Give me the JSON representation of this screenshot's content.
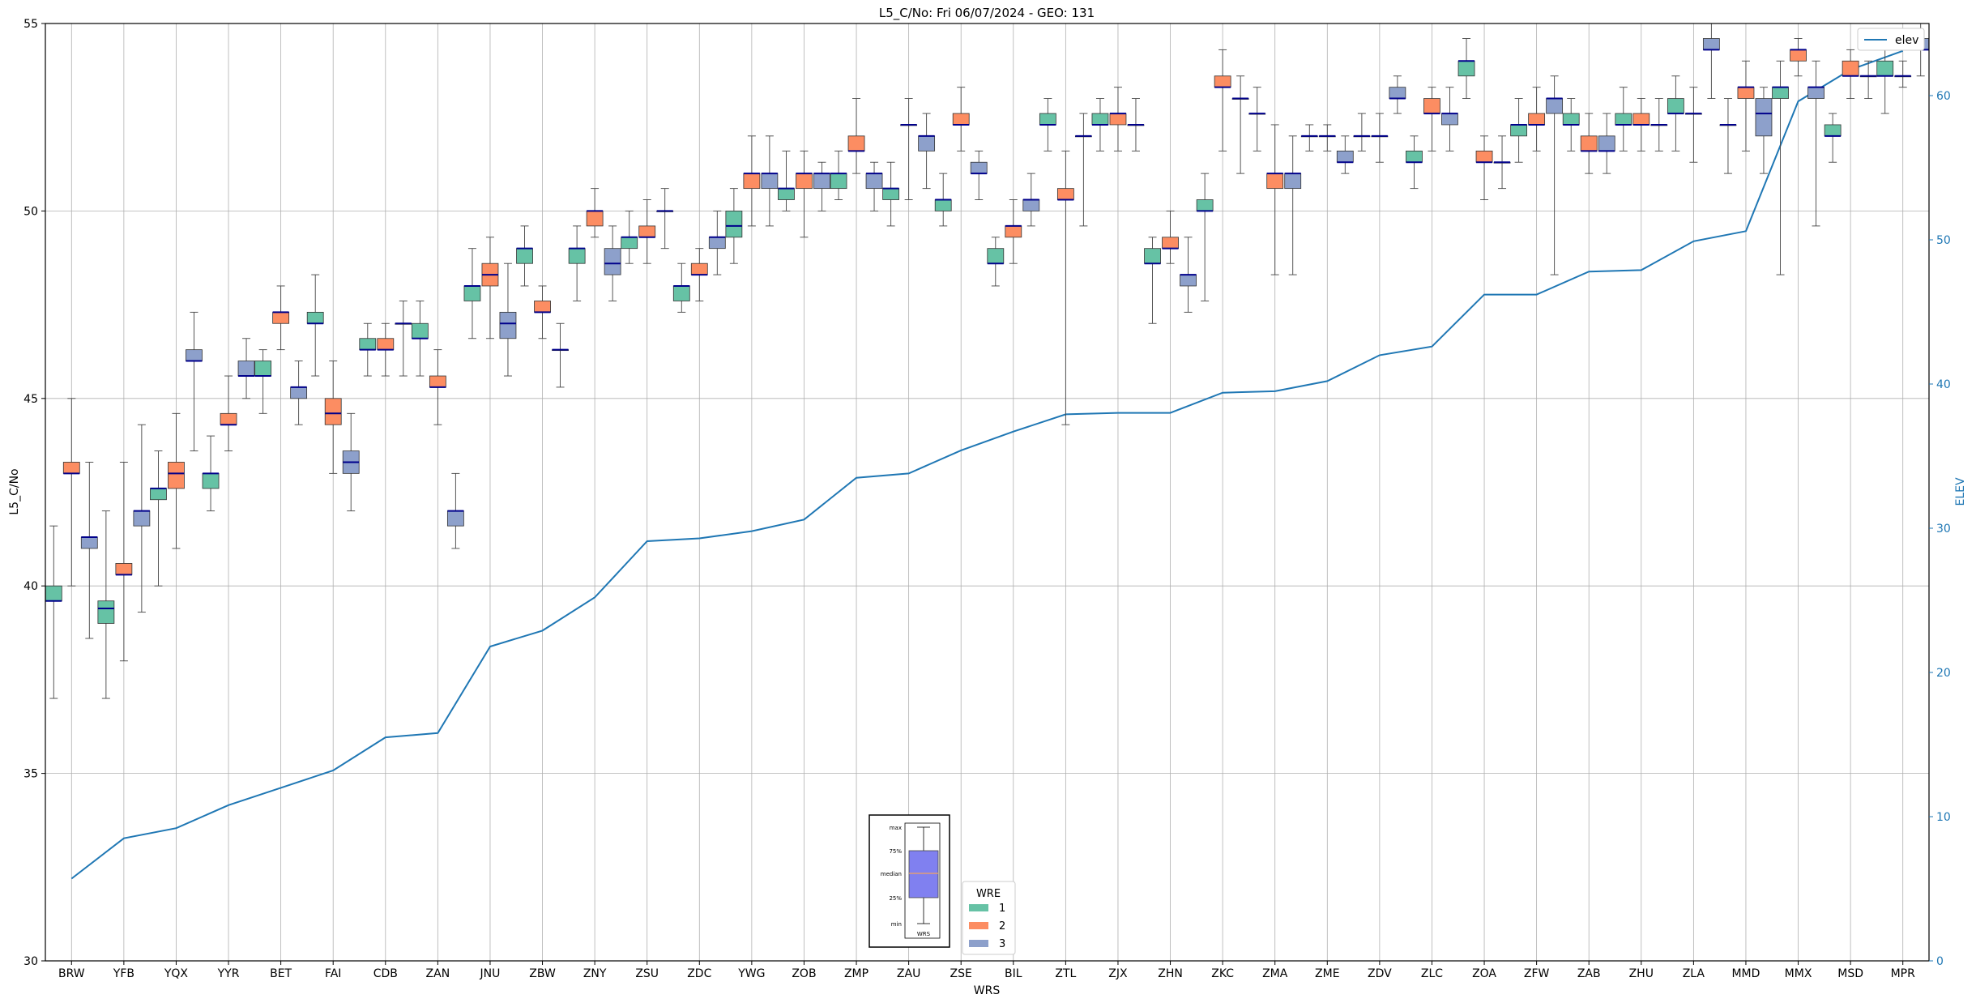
{
  "chart_data": {
    "type": "box",
    "title": "L5_C/No: Fri 06/07/2024 - GEO: 131",
    "xlabel": "WRS",
    "ylabel": "L5_C/No",
    "y2label": "ELEV",
    "ylim": [
      30,
      55
    ],
    "y2lim": [
      0,
      65
    ],
    "yticks": [
      30,
      35,
      40,
      45,
      50,
      55
    ],
    "y2ticks": [
      0,
      10,
      20,
      30,
      40,
      50,
      60
    ],
    "grid": true,
    "categories": [
      "BRW",
      "YFB",
      "YQX",
      "YYR",
      "BET",
      "FAI",
      "CDB",
      "ZAN",
      "JNU",
      "ZBW",
      "ZNY",
      "ZSU",
      "ZDC",
      "YWG",
      "ZOB",
      "ZMP",
      "ZAU",
      "ZSE",
      "BIL",
      "ZTL",
      "ZJX",
      "ZHN",
      "ZKC",
      "ZMA",
      "ZME",
      "ZDV",
      "ZLC",
      "ZOA",
      "ZFW",
      "ZAB",
      "ZHU",
      "ZLA",
      "MMD",
      "MMX",
      "MSD",
      "MPR"
    ],
    "series": [
      {
        "name": "1",
        "color": "#66c2a5",
        "boxes": [
          [
            37.0,
            39.6,
            39.6,
            40.0,
            41.6
          ],
          [
            37.0,
            39.0,
            39.4,
            39.6,
            42.0
          ],
          [
            40.0,
            42.3,
            42.6,
            42.6,
            43.6
          ],
          [
            42.0,
            42.6,
            43.0,
            43.0,
            44.0
          ],
          [
            44.6,
            45.6,
            45.6,
            46.0,
            46.3
          ],
          [
            45.6,
            47.0,
            47.0,
            47.3,
            48.3
          ],
          [
            45.6,
            46.3,
            46.3,
            46.6,
            47.0
          ],
          [
            45.6,
            46.6,
            46.6,
            47.0,
            47.6
          ],
          [
            46.6,
            47.6,
            48.0,
            48.0,
            49.0
          ],
          [
            48.0,
            48.6,
            49.0,
            49.0,
            49.6
          ],
          [
            47.6,
            48.6,
            49.0,
            49.0,
            49.6
          ],
          [
            48.6,
            49.0,
            49.3,
            49.3,
            50.0
          ],
          [
            47.3,
            47.6,
            48.0,
            48.0,
            48.6
          ],
          [
            48.6,
            49.3,
            49.6,
            50.0,
            50.6
          ],
          [
            50.0,
            50.3,
            50.6,
            50.6,
            51.6
          ],
          [
            50.3,
            50.6,
            51.0,
            51.0,
            51.6
          ],
          [
            49.6,
            50.3,
            50.6,
            50.6,
            51.3
          ],
          [
            49.6,
            50.0,
            50.3,
            50.3,
            51.0
          ],
          [
            48.0,
            48.6,
            48.6,
            49.0,
            49.3
          ],
          [
            51.6,
            52.3,
            52.3,
            52.6,
            53.0
          ],
          [
            51.6,
            52.3,
            52.3,
            52.6,
            53.0
          ],
          [
            47.0,
            48.6,
            48.6,
            49.0,
            49.3
          ],
          [
            47.6,
            50.0,
            50.0,
            50.3,
            51.0
          ],
          [
            51.6,
            52.6,
            52.6,
            52.6,
            53.3
          ],
          [
            51.6,
            52.0,
            52.0,
            52.0,
            52.3
          ],
          [
            51.6,
            52.0,
            52.0,
            52.0,
            52.6
          ],
          [
            50.6,
            51.3,
            51.3,
            51.6,
            52.0
          ],
          [
            53.0,
            53.6,
            54.0,
            54.0,
            54.6
          ],
          [
            51.3,
            52.0,
            52.3,
            52.3,
            53.0
          ],
          [
            51.6,
            52.3,
            52.3,
            52.6,
            53.0
          ],
          [
            51.6,
            52.3,
            52.3,
            52.6,
            53.3
          ],
          [
            51.6,
            52.6,
            52.6,
            53.0,
            53.6
          ],
          [
            51.0,
            52.3,
            52.3,
            52.3,
            53.0
          ],
          [
            48.3,
            53.0,
            53.3,
            53.3,
            54.0
          ],
          [
            51.3,
            52.0,
            52.0,
            52.3,
            52.6
          ],
          [
            52.6,
            53.6,
            53.6,
            54.0,
            54.3
          ]
        ]
      },
      {
        "name": "2",
        "color": "#fc8d62",
        "boxes": [
          [
            40.0,
            43.0,
            43.0,
            43.3,
            45.0
          ],
          [
            38.0,
            40.3,
            40.3,
            40.6,
            43.3
          ],
          [
            41.0,
            42.6,
            43.0,
            43.3,
            44.6
          ],
          [
            43.6,
            44.3,
            44.3,
            44.6,
            45.6
          ],
          [
            46.3,
            47.0,
            47.3,
            47.3,
            48.0
          ],
          [
            43.0,
            44.3,
            44.6,
            45.0,
            46.0
          ],
          [
            45.6,
            46.3,
            46.3,
            46.6,
            47.0
          ],
          [
            44.3,
            45.3,
            45.3,
            45.6,
            46.3
          ],
          [
            46.6,
            48.0,
            48.3,
            48.6,
            49.3
          ],
          [
            46.6,
            47.3,
            47.3,
            47.6,
            48.0
          ],
          [
            49.3,
            49.6,
            50.0,
            50.0,
            50.6
          ],
          [
            48.6,
            49.3,
            49.3,
            49.6,
            50.3
          ],
          [
            47.6,
            48.3,
            48.3,
            48.6,
            49.0
          ],
          [
            49.6,
            50.6,
            51.0,
            51.0,
            52.0
          ],
          [
            49.3,
            50.6,
            51.0,
            51.0,
            51.6
          ],
          [
            51.0,
            51.6,
            51.6,
            52.0,
            53.0
          ],
          [
            50.3,
            52.3,
            52.3,
            52.3,
            53.0
          ],
          [
            51.6,
            52.3,
            52.3,
            52.6,
            53.3
          ],
          [
            48.6,
            49.3,
            49.6,
            49.6,
            50.3
          ],
          [
            44.3,
            50.3,
            50.3,
            50.6,
            51.6
          ],
          [
            51.6,
            52.3,
            52.6,
            52.6,
            53.3
          ],
          [
            48.6,
            49.0,
            49.0,
            49.3,
            50.0
          ],
          [
            51.6,
            53.3,
            53.3,
            53.6,
            54.3
          ],
          [
            48.3,
            50.6,
            51.0,
            51.0,
            52.3
          ],
          [
            51.6,
            52.0,
            52.0,
            52.0,
            52.3
          ],
          [
            51.3,
            52.0,
            52.0,
            52.0,
            52.6
          ],
          [
            51.6,
            52.6,
            52.6,
            53.0,
            53.3
          ],
          [
            50.3,
            51.3,
            51.3,
            51.6,
            52.0
          ],
          [
            51.6,
            52.3,
            52.3,
            52.6,
            53.3
          ],
          [
            51.0,
            51.6,
            51.6,
            52.0,
            52.6
          ],
          [
            51.6,
            52.3,
            52.3,
            52.6,
            53.0
          ],
          [
            51.3,
            52.6,
            52.6,
            52.6,
            53.3
          ],
          [
            51.6,
            53.0,
            53.3,
            53.3,
            54.0
          ],
          [
            53.6,
            54.0,
            54.3,
            54.3,
            54.6
          ],
          [
            53.0,
            53.6,
            53.6,
            54.0,
            54.3
          ],
          [
            53.3,
            53.6,
            53.6,
            53.6,
            54.0
          ]
        ]
      },
      {
        "name": "3",
        "color": "#8da0cb",
        "boxes": [
          [
            38.6,
            41.0,
            41.3,
            41.3,
            43.3
          ],
          [
            39.3,
            41.6,
            42.0,
            42.0,
            44.3
          ],
          [
            43.6,
            46.0,
            46.0,
            46.3,
            47.3
          ],
          [
            45.0,
            45.6,
            45.6,
            46.0,
            46.6
          ],
          [
            44.3,
            45.0,
            45.3,
            45.3,
            46.0
          ],
          [
            42.0,
            43.0,
            43.3,
            43.6,
            44.6
          ],
          [
            45.6,
            47.0,
            47.0,
            47.0,
            47.6
          ],
          [
            41.0,
            41.6,
            42.0,
            42.0,
            43.0
          ],
          [
            45.6,
            46.6,
            47.0,
            47.3,
            48.6
          ],
          [
            45.3,
            46.3,
            46.3,
            46.3,
            47.0
          ],
          [
            47.6,
            48.3,
            48.6,
            49.0,
            49.6
          ],
          [
            49.0,
            50.0,
            50.0,
            50.0,
            50.6
          ],
          [
            48.3,
            49.0,
            49.3,
            49.3,
            50.0
          ],
          [
            49.6,
            50.6,
            51.0,
            51.0,
            52.0
          ],
          [
            50.0,
            50.6,
            51.0,
            51.0,
            51.3
          ],
          [
            50.0,
            50.6,
            51.0,
            51.0,
            51.3
          ],
          [
            50.6,
            51.6,
            52.0,
            52.0,
            52.6
          ],
          [
            50.3,
            51.0,
            51.0,
            51.3,
            51.6
          ],
          [
            49.6,
            50.0,
            50.3,
            50.3,
            51.0
          ],
          [
            49.6,
            52.0,
            52.0,
            52.0,
            52.6
          ],
          [
            51.6,
            52.3,
            52.3,
            52.3,
            53.0
          ],
          [
            47.3,
            48.0,
            48.3,
            48.3,
            49.3
          ],
          [
            51.0,
            53.0,
            53.0,
            53.0,
            53.6
          ],
          [
            48.3,
            50.6,
            51.0,
            51.0,
            52.0
          ],
          [
            51.0,
            51.3,
            51.3,
            51.6,
            52.0
          ],
          [
            52.6,
            53.0,
            53.0,
            53.3,
            53.6
          ],
          [
            51.6,
            52.3,
            52.6,
            52.6,
            53.3
          ],
          [
            50.6,
            51.3,
            51.3,
            51.3,
            52.0
          ],
          [
            48.3,
            52.6,
            53.0,
            53.0,
            53.6
          ],
          [
            51.0,
            51.6,
            51.6,
            52.0,
            52.6
          ],
          [
            51.6,
            52.3,
            52.3,
            52.3,
            53.0
          ],
          [
            53.0,
            54.3,
            54.3,
            54.6,
            55.0
          ],
          [
            51.0,
            52.0,
            52.6,
            53.0,
            53.3
          ],
          [
            49.6,
            53.0,
            53.3,
            53.3,
            54.0
          ],
          [
            53.0,
            53.6,
            53.6,
            53.6,
            54.0
          ],
          [
            53.6,
            54.3,
            54.3,
            54.6,
            55.0
          ]
        ]
      }
    ],
    "elev": {
      "name": "elev",
      "color": "#1f77b4",
      "values": [
        5.7,
        8.5,
        9.2,
        10.8,
        12.0,
        13.2,
        15.5,
        15.8,
        21.8,
        22.9,
        25.2,
        29.1,
        29.3,
        29.8,
        30.6,
        33.5,
        33.8,
        35.4,
        36.7,
        37.9,
        38.0,
        38.0,
        39.4,
        39.5,
        40.2,
        42.0,
        42.6,
        46.2,
        46.2,
        47.8,
        47.9,
        49.9,
        50.6,
        59.6,
        61.8,
        63.1
      ]
    },
    "legend_position": "top-right",
    "box_legend": {
      "title": "WRE",
      "entries": [
        "1",
        "2",
        "3"
      ],
      "position": "bottom-center",
      "key_labels": [
        "max",
        "75%",
        "median",
        "25%",
        "min"
      ],
      "key_xlabel": "WRS"
    }
  }
}
